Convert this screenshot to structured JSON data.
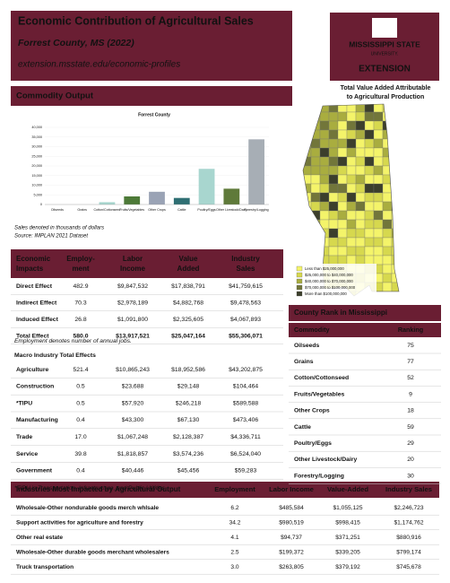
{
  "header": {
    "title": "Economic Contribution of Agricultural Sales",
    "subtitle": "Forrest County, MS (2022)",
    "url": "extension.msstate.edu/economic-profiles"
  },
  "logo": {
    "line1": "MISSISSIPPI STATE",
    "line2": "UNIVERSITY.",
    "line3": "EXTENSION"
  },
  "map": {
    "title_lines": [
      "Total Value Added Attributable",
      "to Agricultural Production"
    ],
    "legend": [
      {
        "label": "Less than $25,000,000",
        "color": "#f4f46a"
      },
      {
        "label": "$25,000,000 to $40,000,000",
        "color": "#d6d84e"
      },
      {
        "label": "$40,000,000 to $70,000,000",
        "color": "#a9ad3f"
      },
      {
        "label": "$70,000,000 to $100,000,000",
        "color": "#72763a"
      },
      {
        "label": "More than $100,000,000",
        "color": "#3c3f2c"
      }
    ]
  },
  "commodity_output": {
    "heading": "Commodity Output",
    "chart": {
      "type": "bar",
      "title": "Forrest County",
      "categories": [
        "Oilseeds",
        "Grains",
        "Cotton/Cottonseed",
        "Fruits/Vegetables",
        "Other Crops",
        "Cattle",
        "Poultry/Eggs",
        "Other Livestock/Dairy",
        "Forestry/Logging"
      ],
      "values": [
        0,
        0,
        1200,
        4200,
        6600,
        3400,
        18500,
        8200,
        33800
      ],
      "colors": [
        "#8fb8c8",
        "#8fb8c8",
        "#a8d6cf",
        "#4d7a38",
        "#9aa3b5",
        "#2f6f73",
        "#a8d6cf",
        "#5f7a3a",
        "#a7aeb5"
      ],
      "ylim": [
        0,
        40000
      ],
      "yticks": [
        0,
        {
          "value": 5000,
          "label": "5,000"
        },
        {
          "value": 10000,
          "label": "10,000"
        },
        {
          "value": 15000,
          "label": "15,000"
        },
        {
          "value": 20000,
          "label": "20,000"
        },
        {
          "value": 25000,
          "label": "25,000"
        },
        {
          "value": 30000,
          "label": "30,000"
        },
        {
          "value": 35000,
          "label": "35,000"
        },
        {
          "value": 40000,
          "label": "40,000"
        }
      ]
    },
    "notes": [
      "Sales denoted in thousands of dollars",
      "Source: IMPLAN 2021 Dataset"
    ]
  },
  "economic_impacts": {
    "columns": [
      [
        "Economic",
        "Impacts"
      ],
      [
        "Employ-",
        "ment"
      ],
      [
        "Labor",
        "Income"
      ],
      [
        "Value",
        "Added"
      ],
      [
        "Industry",
        "Sales"
      ]
    ],
    "rows": [
      [
        "Direct Effect",
        "482.9",
        "$9,847,532",
        "$17,838,791",
        "$41,759,615"
      ],
      [
        "Indirect Effect",
        "70.3",
        "$2,978,189",
        "$4,882,768",
        "$9,478,563"
      ],
      [
        "Induced Effect",
        "26.8",
        "$1,091,800",
        "$2,325,605",
        "$4,067,893"
      ],
      [
        "Total Effect",
        "580.0",
        "$13,917,521",
        "$25,047,164",
        "$55,306,071"
      ]
    ],
    "note": "Employment denotes number of annual jobs."
  },
  "macro": {
    "heading": "Macro Industry Total Effects",
    "rows": [
      [
        "Agriculture",
        "521.4",
        "$10,865,243",
        "$18,952,586",
        "$43,202,875"
      ],
      [
        "Construction",
        "0.5",
        "$23,688",
        "$29,148",
        "$104,464"
      ],
      [
        "*TIPU",
        "0.5",
        "$57,920",
        "$246,218",
        "$589,588"
      ],
      [
        "Manufacturing",
        "0.4",
        "$43,300",
        "$67,130",
        "$473,406"
      ],
      [
        "Trade",
        "17.0",
        "$1,067,248",
        "$2,128,387",
        "$4,336,711"
      ],
      [
        "Service",
        "39.8",
        "$1,818,857",
        "$3,574,236",
        "$6,524,040"
      ],
      [
        "Government",
        "0.4",
        "$40,446",
        "$45,456",
        "$59,283"
      ]
    ],
    "note": "*TIPU is Transportation, Infrastructure, and Public Utilities"
  },
  "county_rank": {
    "heading": "County Rank in Mississippi",
    "columns": [
      "Commodity",
      "Ranking"
    ],
    "rows": [
      [
        "Oilseeds",
        "75"
      ],
      [
        "Grains",
        "77"
      ],
      [
        "Cotton/Cottonseed",
        "52"
      ],
      [
        "Fruits/Vegetables",
        "9"
      ],
      [
        "Other Crops",
        "18"
      ],
      [
        "Cattle",
        "59"
      ],
      [
        "Poultry/Eggs",
        "29"
      ],
      [
        "Other Livestock/Dairy",
        "20"
      ],
      [
        "Forestry/Logging",
        "30"
      ]
    ]
  },
  "industries": {
    "columns": [
      "Industries Most Impacted by Agricultural Output",
      "Employment",
      "Labor Income",
      "Value-Added",
      "Industry Sales"
    ],
    "rows": [
      [
        "Wholesale-Other nondurable goods merch whlsale",
        "6.2",
        "$485,584",
        "$1,055,125",
        "$2,246,723"
      ],
      [
        "Support activities for agriculture and forestry",
        "34.2",
        "$980,519",
        "$998,415",
        "$1,174,762"
      ],
      [
        "Other real estate",
        "4.1",
        "$94,737",
        "$371,251",
        "$880,916"
      ],
      [
        "Wholesale-Other durable goods merchant wholesalers",
        "2.5",
        "$199,372",
        "$339,205",
        "$799,174"
      ],
      [
        "Truck transportation",
        "3.0",
        "$263,805",
        "$379,192",
        "$745,678"
      ]
    ]
  }
}
